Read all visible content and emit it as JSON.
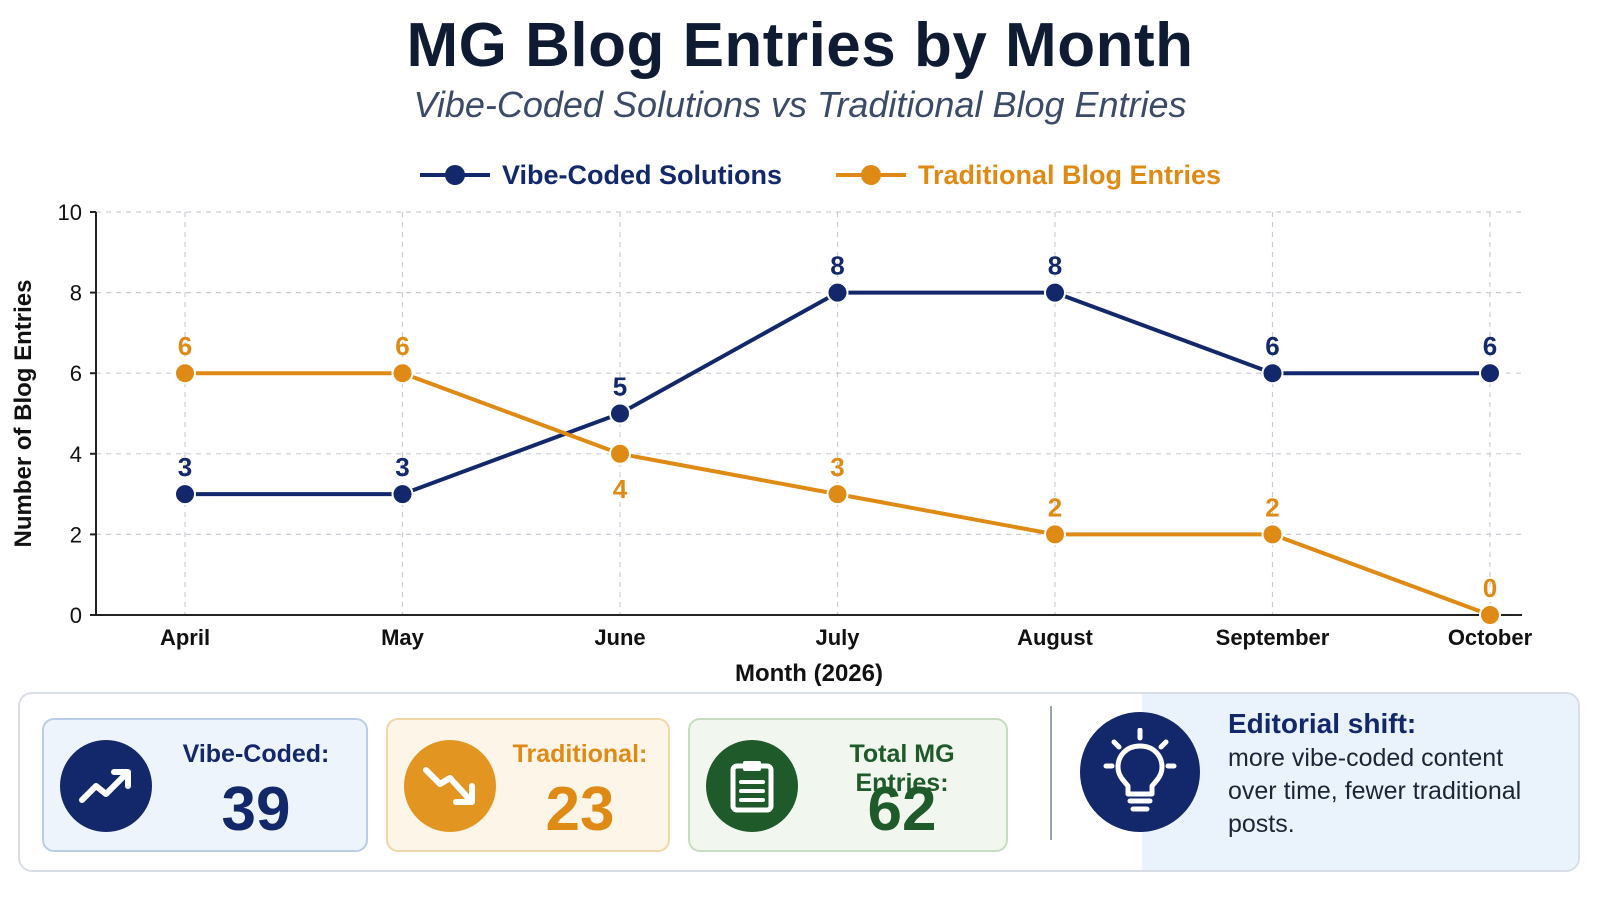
{
  "chart_data": {
    "type": "line",
    "title": "MG Blog Entries by Month",
    "subtitle": "Vibe-Coded Solutions vs Traditional Blog Entries",
    "xlabel": "Month (2026)",
    "ylabel": "Number of Blog Entries",
    "ylim": [
      0,
      10
    ],
    "yticks": [
      0,
      2,
      4,
      6,
      8,
      10
    ],
    "categories": [
      "April",
      "May",
      "June",
      "July",
      "August",
      "September",
      "October"
    ],
    "series": [
      {
        "name": "Vibe-Coded Solutions",
        "color": "#13276b",
        "values": [
          3,
          3,
          5,
          8,
          8,
          6,
          6
        ]
      },
      {
        "name": "Traditional Blog Entries",
        "color": "#e08a16",
        "values": [
          6,
          6,
          4,
          3,
          2,
          2,
          0
        ]
      }
    ],
    "grid": true,
    "legend": "top-center"
  },
  "summary": {
    "vibe": {
      "label": "Vibe-Coded:",
      "value": "39",
      "icon": "trending-up-icon"
    },
    "traditional": {
      "label": "Traditional:",
      "value": "23",
      "icon": "trending-down-icon"
    },
    "total": {
      "label": "Total MG Entries:",
      "value": "62",
      "icon": "clipboard-icon"
    }
  },
  "insight": {
    "title": "Editorial shift:",
    "body": "more vibe-coded content over time, fewer traditional posts.",
    "icon": "lightbulb-icon"
  }
}
